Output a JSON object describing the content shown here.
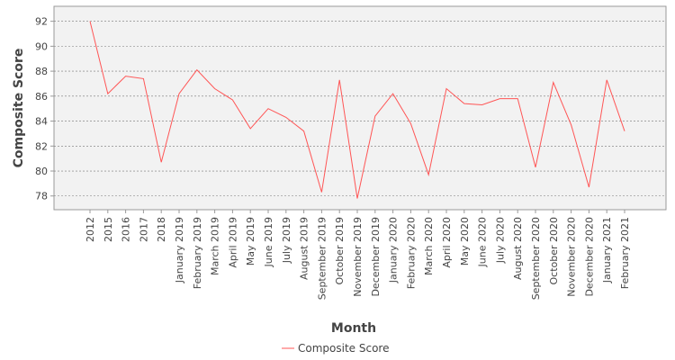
{
  "chart_data": {
    "type": "line",
    "title": "",
    "xlabel": "Month",
    "ylabel": "Composite Score",
    "ylim": [
      76.9,
      93.2
    ],
    "yticks": [
      78,
      80,
      82,
      84,
      86,
      88,
      90,
      92
    ],
    "grid": true,
    "legend_position": "bottom-center",
    "categories": [
      "2012",
      "2015",
      "2016",
      "2017",
      "2018",
      "January 2019",
      "February 2019",
      "March 2019",
      "April 2019",
      "May 2019",
      "June 2019",
      "July 2019",
      "August 2019",
      "September 2019",
      "October 2019",
      "November 2019",
      "December 2019",
      "January 2020",
      "February 2020",
      "March 2020",
      "April 2020",
      "May 2020",
      "June 2020",
      "July 2020",
      "August 2020",
      "September 2020",
      "October 2020",
      "November 2020",
      "December 2020",
      "January 2021",
      "February 2021"
    ],
    "series": [
      {
        "name": "Composite Score",
        "color": "#ff5555",
        "values": [
          92.0,
          86.2,
          87.6,
          87.4,
          80.7,
          86.2,
          88.1,
          86.6,
          85.7,
          83.4,
          85.0,
          84.3,
          83.2,
          78.3,
          87.3,
          77.8,
          84.4,
          86.2,
          83.8,
          79.7,
          86.6,
          85.4,
          85.3,
          85.8,
          85.8,
          80.3,
          87.1,
          83.7,
          78.7,
          87.3,
          83.2
        ]
      }
    ]
  }
}
